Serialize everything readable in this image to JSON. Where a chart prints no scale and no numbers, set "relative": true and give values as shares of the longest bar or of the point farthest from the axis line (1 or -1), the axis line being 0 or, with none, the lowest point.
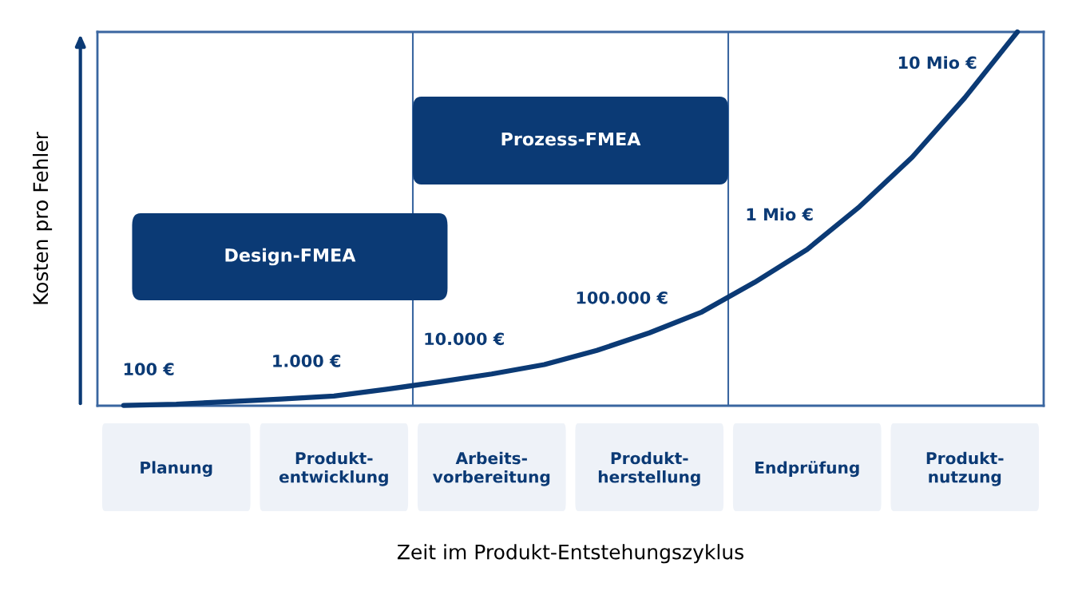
{
  "chart_data": {
    "type": "line",
    "relative": true,
    "xlabel": "Zeit im Produkt-Entstehungszyklus",
    "ylabel": "Kosten pro Fehler",
    "categories": [
      null,
      "Planung",
      null,
      null,
      "Produkt-\nentwicklung",
      null,
      null,
      "Arbeits-\nvorbereitung",
      null,
      null,
      "Produkt-\nherstellung",
      null,
      null,
      "Endprüfung",
      null,
      null,
      "Produkt-\nnutzung",
      null
    ],
    "series": [
      {
        "color": "#0b3a75",
        "values": [
          0.001,
          0.004,
          0.011,
          0.018,
          0.026,
          0.044,
          0.064,
          0.085,
          0.11,
          0.148,
          0.195,
          0.251,
          0.33,
          0.418,
          0.533,
          0.665,
          0.824,
          1
        ]
      }
    ],
    "tick_labels": "x",
    "annotations": [
      "100 €",
      "1.000 €",
      "10.000 €",
      "100.000 €",
      "1 Mio €",
      "10 Mio €",
      "Design-FMEA",
      "Prozess-FMEA"
    ],
    "legend": false,
    "grid": false,
    "marker": "none",
    "line_style": "solid"
  }
}
